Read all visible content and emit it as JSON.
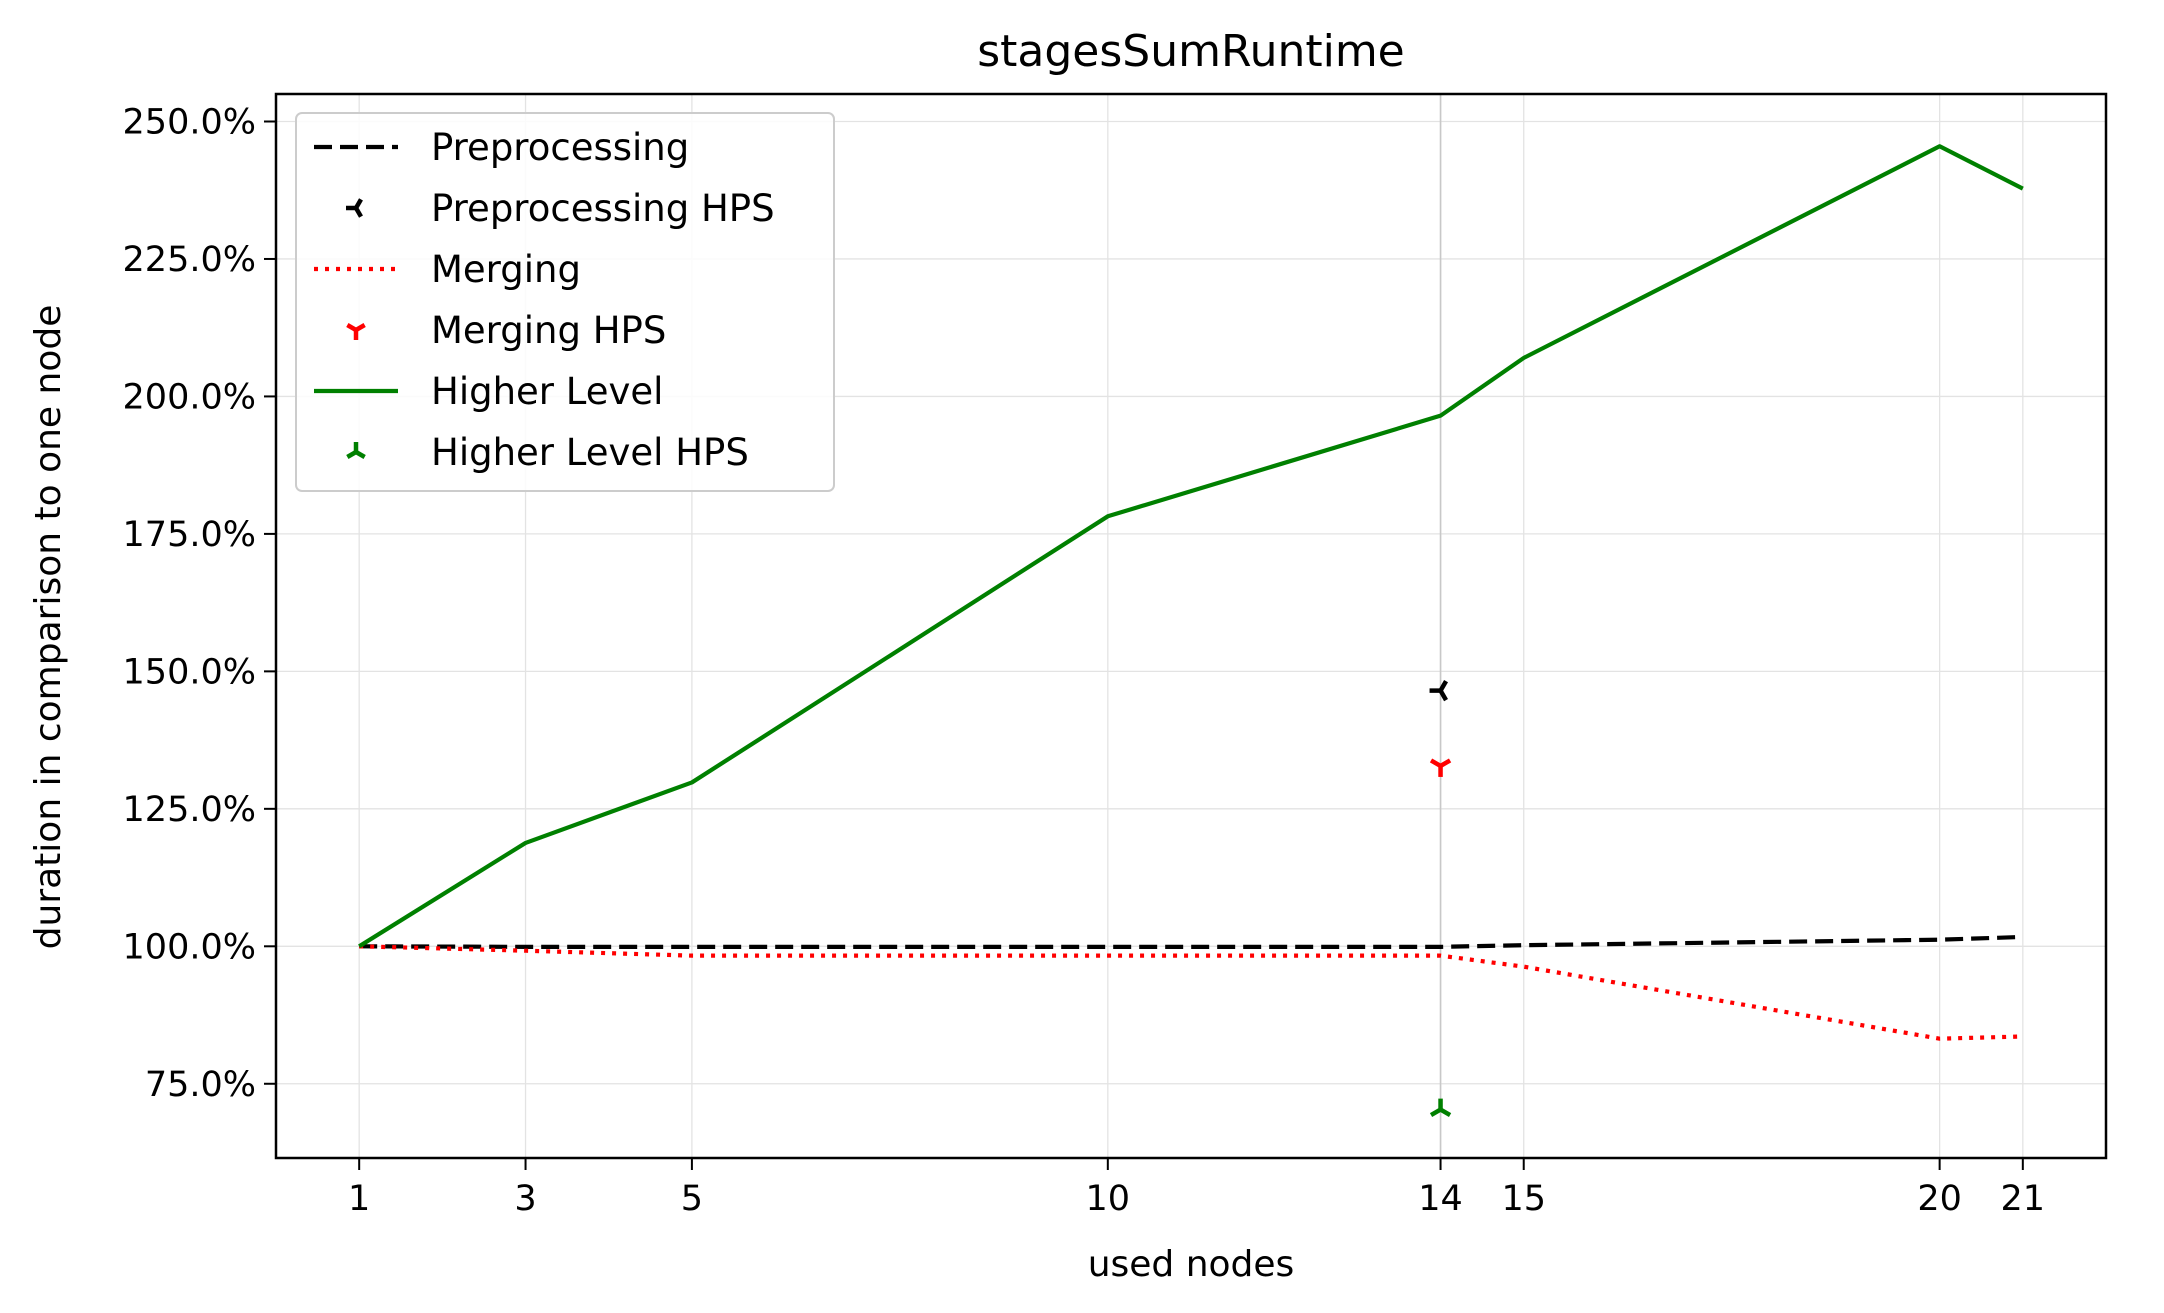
{
  "chart_data": {
    "type": "line",
    "title": "stagesSumRuntime",
    "xlabel": "used nodes",
    "ylabel": "duration in comparison to one node",
    "x_ticks": [
      1,
      3,
      5,
      10,
      14,
      15,
      20,
      21
    ],
    "y_ticks": [
      75,
      100,
      125,
      150,
      175,
      200,
      225,
      250
    ],
    "y_tick_labels": [
      "75.0%",
      "100.0%",
      "125.0%",
      "150.0%",
      "175.0%",
      "200.0%",
      "225.0%",
      "250.0%"
    ],
    "xlim": [
      0.0,
      22.0
    ],
    "ylim": [
      61.5,
      255.0
    ],
    "grid": true,
    "legend_position": "top-left",
    "reference_line_x": 14,
    "series": [
      {
        "name": "Preprocessing",
        "kind": "line",
        "style": "dashed",
        "color": "#000000",
        "x": [
          1,
          3,
          5,
          10,
          14,
          15,
          20,
          21
        ],
        "y": [
          100.0,
          99.9,
          99.9,
          99.9,
          99.9,
          100.2,
          101.2,
          101.7
        ]
      },
      {
        "name": "Preprocessing HPS",
        "kind": "marker",
        "marker": "tri_left",
        "color": "#000000",
        "x": [
          14
        ],
        "y": [
          146.5
        ]
      },
      {
        "name": "Merging",
        "kind": "line",
        "style": "dotted",
        "color": "#ff0000",
        "x": [
          1,
          3,
          5,
          10,
          14,
          15,
          20,
          21
        ],
        "y": [
          100.0,
          99.2,
          98.3,
          98.3,
          98.3,
          96.3,
          83.2,
          83.6
        ]
      },
      {
        "name": "Merging HPS",
        "kind": "marker",
        "marker": "tri_down",
        "color": "#ff0000",
        "x": [
          14
        ],
        "y": [
          132.8
        ]
      },
      {
        "name": "Higher Level",
        "kind": "line",
        "style": "solid",
        "color": "#008000",
        "x": [
          1,
          3,
          5,
          10,
          14,
          15,
          20,
          21
        ],
        "y": [
          100.0,
          118.8,
          129.8,
          178.2,
          196.5,
          207.0,
          245.5,
          237.8
        ]
      },
      {
        "name": "Higher Level HPS",
        "kind": "marker",
        "marker": "tri_up",
        "color": "#008000",
        "x": [
          14
        ],
        "y": [
          70.3
        ]
      }
    ]
  }
}
